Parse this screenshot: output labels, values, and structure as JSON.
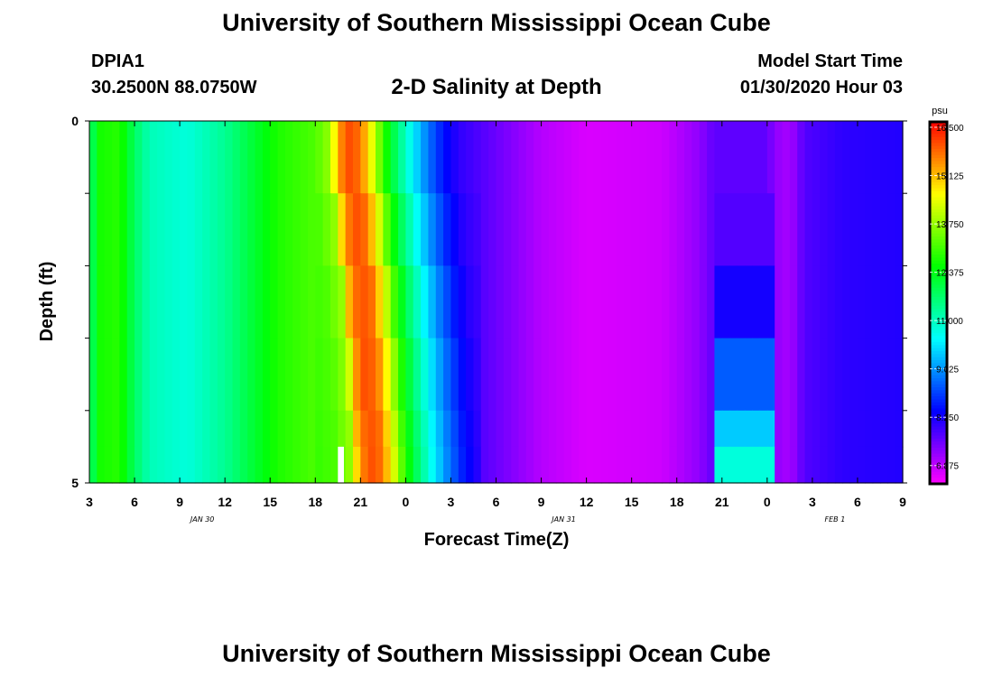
{
  "header": {
    "title": "University of Southern Mississippi Ocean Cube",
    "station_id": "DPIA1",
    "coordinates": "30.2500N 88.0750W",
    "chart_title": "2-D Salinity at Depth",
    "model_start_label": "Model Start Time",
    "model_start_value": "01/30/2020 Hour 03"
  },
  "footer": {
    "title": "University of Southern Mississippi Ocean Cube"
  },
  "chart_data": {
    "type": "heatmap",
    "title": "2-D Salinity at Depth",
    "xlabel": "Forecast Time(Z)",
    "ylabel": "Depth (ft)",
    "x_hours_range": [
      0,
      54
    ],
    "x_tick_labels": [
      "3",
      "6",
      "9",
      "12",
      "15",
      "18",
      "21",
      "0",
      "3",
      "6",
      "9",
      "12",
      "15",
      "18",
      "21",
      "0",
      "3",
      "6",
      "9"
    ],
    "x_date_labels": [
      {
        "label": "JAN 30",
        "at_tick": 2.5
      },
      {
        "label": "JAN 31",
        "at_tick": 10.5
      },
      {
        "label": "FEB 1",
        "at_tick": 16.5
      }
    ],
    "y_range": [
      0,
      5
    ],
    "y_tick_labels": [
      "0",
      "5"
    ],
    "colorbar": {
      "unit": "psu",
      "min": 6.2,
      "max": 16.5,
      "tick_labels": [
        "16.500",
        "15.125",
        "13.750",
        "12.375",
        "11.000",
        "9.625",
        "8.250",
        "6.875"
      ],
      "tick_values": [
        16.5,
        15.125,
        13.75,
        12.375,
        11.0,
        9.625,
        8.25,
        6.875
      ]
    },
    "depth_levels": [
      0,
      1,
      2,
      3,
      4,
      4.5
    ],
    "surface_profile": [
      {
        "t": 0.0,
        "v": 11.1
      },
      {
        "t": 0.5,
        "v": 12.5
      },
      {
        "t": 2.0,
        "v": 12.7
      },
      {
        "t": 3.0,
        "v": 11.6
      },
      {
        "t": 4.0,
        "v": 10.9
      },
      {
        "t": 6.5,
        "v": 10.6
      },
      {
        "t": 9.0,
        "v": 11.2
      },
      {
        "t": 11.0,
        "v": 12.0
      },
      {
        "t": 12.5,
        "v": 12.6
      },
      {
        "t": 15.0,
        "v": 13.0
      },
      {
        "t": 16.0,
        "v": 13.6
      },
      {
        "t": 16.5,
        "v": 15.2
      },
      {
        "t": 17.2,
        "v": 15.9
      },
      {
        "t": 18.0,
        "v": 15.6
      },
      {
        "t": 18.8,
        "v": 14.2
      },
      {
        "t": 19.5,
        "v": 12.8
      },
      {
        "t": 20.5,
        "v": 11.4
      },
      {
        "t": 21.5,
        "v": 10.2
      },
      {
        "t": 22.5,
        "v": 9.2
      },
      {
        "t": 23.5,
        "v": 8.4
      },
      {
        "t": 24.5,
        "v": 7.9
      },
      {
        "t": 27.0,
        "v": 7.4
      },
      {
        "t": 30.0,
        "v": 6.8
      },
      {
        "t": 33.0,
        "v": 6.5
      },
      {
        "t": 38.0,
        "v": 6.6
      },
      {
        "t": 40.5,
        "v": 7.1
      },
      {
        "t": 41.5,
        "v": 7.5
      },
      {
        "t": 45.0,
        "v": 7.5
      },
      {
        "t": 45.5,
        "v": 7.1
      },
      {
        "t": 46.5,
        "v": 6.9
      },
      {
        "t": 47.5,
        "v": 7.6
      },
      {
        "t": 50.0,
        "v": 7.9
      },
      {
        "t": 54.0,
        "v": 8.0
      }
    ],
    "front_times_by_depth": [
      17.2,
      17.6,
      18.0,
      18.3,
      18.5,
      18.6
    ],
    "mid_segment": {
      "t_range": [
        41.5,
        45.5
      ],
      "values_by_depth": [
        7.5,
        7.6,
        8.1,
        9.0,
        9.9,
        10.6
      ]
    },
    "missing_cell": {
      "t": [
        16.5,
        16.9
      ],
      "depth": [
        4.5,
        5
      ]
    }
  }
}
